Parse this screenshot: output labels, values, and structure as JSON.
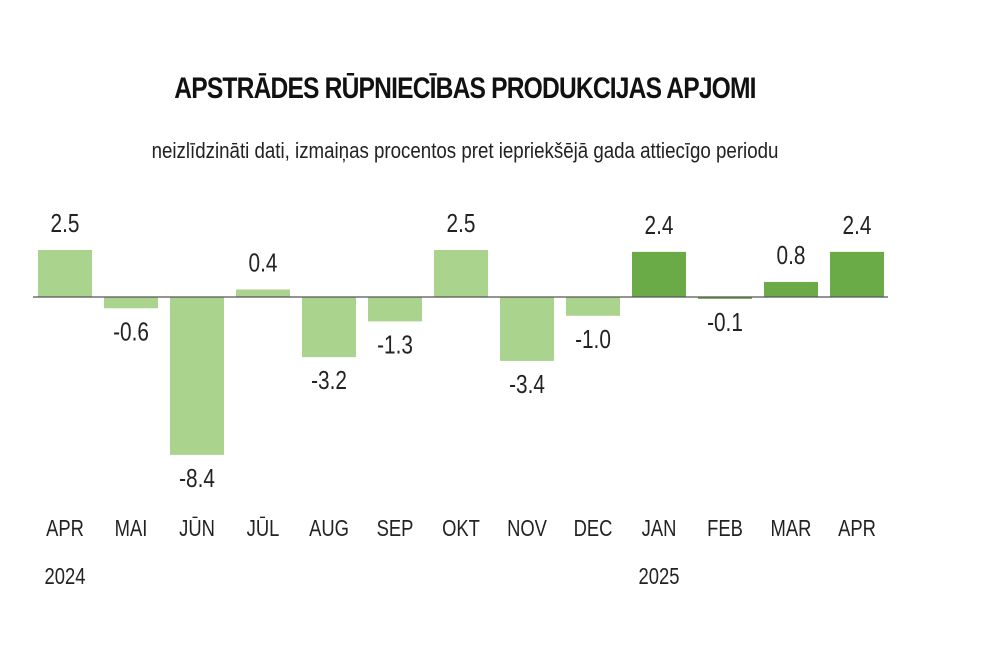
{
  "title": "APSTRĀDES RŪPNIECĪBAS PRODUKCIJAS APJOMI",
  "subtitle": "neizlīdzināti dati, izmaiņas procentos pret iepriekšējā gada attiecīgo periodu",
  "colors": {
    "light": "#aad48e",
    "dark": "#6aab48",
    "axis": "#555555"
  },
  "chart_data": {
    "type": "bar",
    "categories": [
      "APR",
      "MAI",
      "JŪN",
      "JŪL",
      "AUG",
      "SEP",
      "OKT",
      "NOV",
      "DEC",
      "JAN",
      "FEB",
      "MAR",
      "APR"
    ],
    "year_labels": [
      {
        "index": 0,
        "text": "2024"
      },
      {
        "index": 9,
        "text": "2025"
      }
    ],
    "values": [
      2.5,
      -0.6,
      -8.4,
      0.4,
      -3.2,
      -1.3,
      2.5,
      -3.4,
      -1.0,
      2.4,
      -0.1,
      0.8,
      2.4
    ],
    "value_labels": [
      "2.5",
      "-0.6",
      "-8.4",
      "0.4",
      "-3.2",
      "-1.3",
      "2.5",
      "-3.4",
      "-1.0",
      "2.4",
      "-0.1",
      "0.8",
      "2.4"
    ],
    "highlight": [
      false,
      false,
      false,
      false,
      false,
      false,
      false,
      false,
      false,
      true,
      true,
      true,
      true
    ],
    "ylim": [
      -8.4,
      2.5
    ],
    "grid": false
  }
}
